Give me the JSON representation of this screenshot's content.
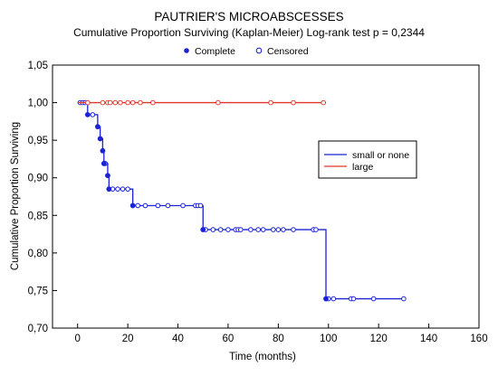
{
  "chart_data": {
    "type": "line",
    "title": "PAUTRIER'S MICROABSCESSES",
    "subtitle": "Cumulative Proportion Surviving (Kaplan-Meier)  Log-rank test  p = 0,2344",
    "xlabel": "Time (months)",
    "ylabel": "Cumulative Proportion Surviving",
    "xlim": [
      -10,
      160
    ],
    "ylim": [
      0.7,
      1.05
    ],
    "xticks": [
      0,
      20,
      40,
      60,
      80,
      100,
      120,
      140,
      160
    ],
    "yticks": [
      0.7,
      0.75,
      0.8,
      0.85,
      0.9,
      0.95,
      1.0,
      1.05
    ],
    "xtick_labels": [
      "0",
      "20",
      "40",
      "60",
      "80",
      "100",
      "120",
      "140",
      "160"
    ],
    "ytick_labels": [
      "0,70",
      "0,75",
      "0,80",
      "0,85",
      "0,90",
      "0,95",
      "1,00",
      "1,05"
    ],
    "marker_legend": [
      {
        "label": "Complete",
        "marker": "filled-circle"
      },
      {
        "label": "Censored",
        "marker": "open-circle"
      }
    ],
    "series": [
      {
        "name": "small or none",
        "color": "#1a23d6",
        "steps": [
          [
            0,
            1.0
          ],
          [
            4,
            0.984
          ],
          [
            8,
            0.968
          ],
          [
            9,
            0.952
          ],
          [
            10,
            0.936
          ],
          [
            10.5,
            0.919
          ],
          [
            12,
            0.903
          ],
          [
            12.5,
            0.885
          ],
          [
            22,
            0.863
          ],
          [
            50,
            0.831
          ],
          [
            99,
            0.739
          ],
          [
            130,
            0.739
          ]
        ],
        "events": [
          [
            4,
            0.984
          ],
          [
            8,
            0.968
          ],
          [
            9,
            0.952
          ],
          [
            10,
            0.936
          ],
          [
            10.5,
            0.919
          ],
          [
            12,
            0.903
          ],
          [
            12.5,
            0.885
          ],
          [
            22,
            0.863
          ],
          [
            50,
            0.831
          ],
          [
            99,
            0.739
          ]
        ],
        "censored": [
          [
            1,
            1.0
          ],
          [
            2,
            1.0
          ],
          [
            3,
            1.0
          ],
          [
            6,
            0.984
          ],
          [
            11,
            0.919
          ],
          [
            14,
            0.885
          ],
          [
            16,
            0.885
          ],
          [
            18,
            0.885
          ],
          [
            20,
            0.885
          ],
          [
            24,
            0.863
          ],
          [
            27,
            0.863
          ],
          [
            32,
            0.863
          ],
          [
            36,
            0.863
          ],
          [
            42,
            0.863
          ],
          [
            47,
            0.863
          ],
          [
            48,
            0.863
          ],
          [
            49,
            0.863
          ],
          [
            51,
            0.831
          ],
          [
            54,
            0.831
          ],
          [
            57,
            0.831
          ],
          [
            60,
            0.831
          ],
          [
            63,
            0.831
          ],
          [
            64,
            0.831
          ],
          [
            65,
            0.831
          ],
          [
            69,
            0.831
          ],
          [
            72,
            0.831
          ],
          [
            74,
            0.831
          ],
          [
            78,
            0.831
          ],
          [
            80,
            0.831
          ],
          [
            82,
            0.831
          ],
          [
            86,
            0.831
          ],
          [
            94,
            0.831
          ],
          [
            95,
            0.831
          ],
          [
            100,
            0.739
          ],
          [
            102,
            0.739
          ],
          [
            109,
            0.739
          ],
          [
            110,
            0.739
          ],
          [
            118,
            0.739
          ],
          [
            130,
            0.739
          ]
        ]
      },
      {
        "name": "large",
        "color": "#e0362a",
        "steps": [
          [
            0,
            1.0
          ],
          [
            98,
            1.0
          ]
        ],
        "events": [],
        "censored": [
          [
            4,
            1.0
          ],
          [
            10,
            1.0
          ],
          [
            12,
            1.0
          ],
          [
            13,
            1.0
          ],
          [
            15,
            1.0
          ],
          [
            17,
            1.0
          ],
          [
            20,
            1.0
          ],
          [
            22,
            1.0
          ],
          [
            25,
            1.0
          ],
          [
            30,
            1.0
          ],
          [
            56,
            1.0
          ],
          [
            77,
            1.0
          ],
          [
            86,
            1.0
          ],
          [
            98,
            1.0
          ]
        ]
      }
    ],
    "legend_placement": "right"
  }
}
